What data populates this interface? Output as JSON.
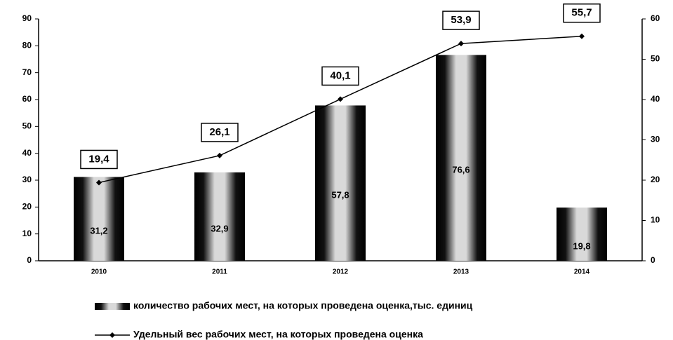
{
  "chart_data": {
    "type": "bar",
    "categories": [
      "2010",
      "2011",
      "2012",
      "2013",
      "2014"
    ],
    "series": [
      {
        "name": "количество рабочих мест, на которых проведена оценка,тыс. единиц",
        "type": "bar",
        "color": "#d9d9d9",
        "values": [
          31.2,
          32.9,
          57.8,
          76.6,
          19.8
        ],
        "value_labels": [
          "31,2",
          "32,9",
          "57,8",
          "76,6",
          "19,8"
        ]
      },
      {
        "name": "Удельный вес рабочих мест, на которых проведена оценка",
        "type": "line",
        "axis": "y2",
        "color": "#000000",
        "values": [
          19.4,
          26.1,
          40.1,
          53.9,
          55.7
        ],
        "value_labels": [
          "19,4",
          "26,1",
          "40,1",
          "53,9",
          "55,7"
        ]
      }
    ],
    "ylim": [
      0,
      90
    ],
    "yticks": [
      0,
      10,
      20,
      30,
      40,
      50,
      60,
      70,
      80,
      90
    ],
    "y2lim": [
      0,
      60
    ],
    "y2ticks": [
      0,
      10,
      20,
      30,
      40,
      50,
      60
    ]
  }
}
